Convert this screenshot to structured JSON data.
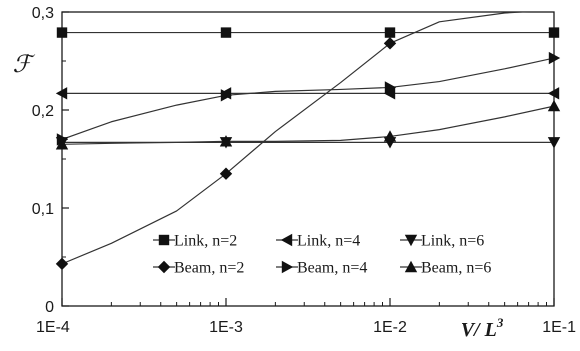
{
  "chart_data": {
    "type": "line",
    "ylabel": "ℱ",
    "xlabel": "V",
    "xlabel_sup_base": "/ L",
    "xlabel_sup": "3",
    "x_scale": "log",
    "xlim": [
      0.0001,
      0.1
    ],
    "ylim": [
      0,
      0.3
    ],
    "xticks": [
      0.0001,
      0.001,
      0.01,
      0.1
    ],
    "xtick_labels": [
      "1E-4",
      "1E-3",
      "1E-2",
      "1E-1"
    ],
    "yticks": [
      0,
      0.1,
      0.2,
      0.3
    ],
    "ytick_labels": [
      "0",
      "0,1",
      "0,2",
      "0,3"
    ],
    "grid": false,
    "legend_position": "bottom-center",
    "series": [
      {
        "name": "Link, n=2",
        "marker": "square",
        "x": [
          0.0001,
          0.001,
          0.01,
          0.1
        ],
        "y": [
          0.279,
          0.279,
          0.279,
          0.279
        ],
        "marker_x": [
          0.0001,
          0.001,
          0.01,
          0.1
        ]
      },
      {
        "name": "Link, n=4",
        "marker": "triangle-left",
        "x": [
          0.0001,
          0.001,
          0.01,
          0.1
        ],
        "y": [
          0.217,
          0.217,
          0.217,
          0.217
        ],
        "marker_x": [
          0.0001,
          0.001,
          0.01,
          0.1
        ]
      },
      {
        "name": "Link, n=6",
        "marker": "triangle-down",
        "x": [
          0.0001,
          0.001,
          0.01,
          0.1
        ],
        "y": [
          0.167,
          0.167,
          0.167,
          0.167
        ],
        "marker_x": [
          0.0001,
          0.001,
          0.01,
          0.1
        ]
      },
      {
        "name": "Beam, n=2",
        "marker": "diamond",
        "x": [
          0.0001,
          0.0002,
          0.0005,
          0.001,
          0.002,
          0.005,
          0.01,
          0.02,
          0.05,
          0.1
        ],
        "y": [
          0.043,
          0.064,
          0.097,
          0.135,
          0.178,
          0.228,
          0.268,
          0.29,
          0.299,
          0.302
        ],
        "marker_x": [
          0.0001,
          0.001,
          0.01
        ]
      },
      {
        "name": "Beam, n=4",
        "marker": "triangle-right",
        "x": [
          0.0001,
          0.0002,
          0.0005,
          0.001,
          0.002,
          0.005,
          0.01,
          0.02,
          0.05,
          0.1
        ],
        "y": [
          0.17,
          0.188,
          0.205,
          0.215,
          0.219,
          0.221,
          0.223,
          0.229,
          0.242,
          0.253
        ],
        "marker_x": [
          0.0001,
          0.001,
          0.01,
          0.1
        ]
      },
      {
        "name": "Beam, n=6",
        "marker": "triangle-up",
        "x": [
          0.0001,
          0.0002,
          0.0005,
          0.001,
          0.002,
          0.005,
          0.01,
          0.02,
          0.05,
          0.1
        ],
        "y": [
          0.165,
          0.166,
          0.167,
          0.168,
          0.168,
          0.169,
          0.173,
          0.18,
          0.193,
          0.204
        ],
        "marker_x": [
          0.0001,
          0.001,
          0.01,
          0.1
        ]
      }
    ],
    "colors": {
      "line": "#333333",
      "marker": "#111111",
      "axis": "#1a1a1a"
    }
  }
}
